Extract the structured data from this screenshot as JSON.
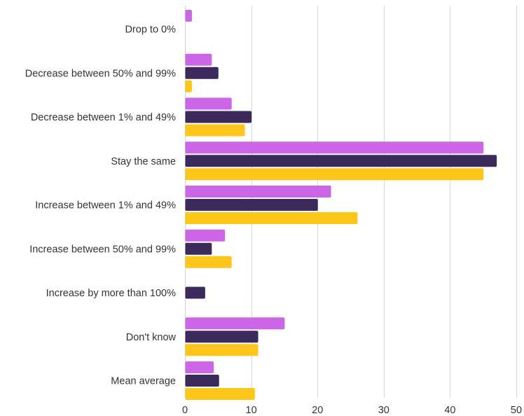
{
  "chart_data": {
    "type": "bar",
    "orientation": "horizontal",
    "categories": [
      "Drop to 0%",
      "Decrease between 50% and 99%",
      "Decrease between 1% and 49%",
      "Stay the same",
      "Increase between 1% and 49%",
      "Increase between 50% and 99%",
      "Increase by more than 100%",
      "Don't know",
      "Mean average"
    ],
    "series": [
      {
        "color": "#cc66e6",
        "values": [
          1,
          4,
          7,
          45,
          22,
          6,
          null,
          15,
          4.3
        ]
      },
      {
        "color": "#3d2a5c",
        "values": [
          null,
          5,
          10,
          47,
          20,
          4,
          3,
          11,
          5.1
        ]
      },
      {
        "color": "#ffc61a",
        "values": [
          null,
          1,
          9,
          45,
          26,
          7,
          null,
          11,
          10.5
        ]
      }
    ],
    "xlim": [
      0,
      50
    ],
    "x_ticks": [
      0,
      10,
      20,
      30,
      40,
      50
    ],
    "grid": true,
    "legend": "none"
  }
}
